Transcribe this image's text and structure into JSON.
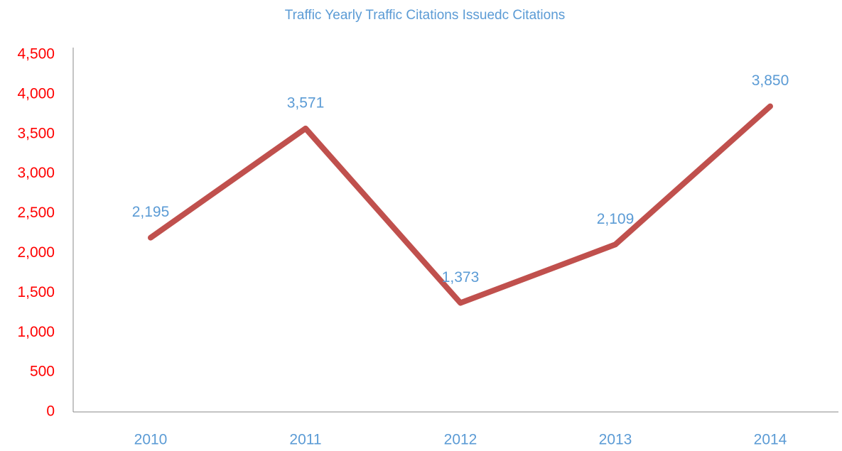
{
  "chart_data": {
    "type": "line",
    "title": "Traffic Yearly Traffic Citations Issuedc Citations",
    "categories": [
      "2010",
      "2011",
      "2012",
      "2013",
      "2014"
    ],
    "values": [
      2195,
      3571,
      1373,
      2109,
      3850
    ],
    "value_labels": [
      "2,195",
      "3,571",
      "1,373",
      "2,109",
      "3,850"
    ],
    "color": "#c0504d",
    "ylim": [
      0,
      4500
    ],
    "yticks": [
      0,
      500,
      {
        "value": 1000,
        "label": "1,000"
      },
      {
        "value": 1500,
        "label": "1,500"
      },
      {
        "value": 2000,
        "label": "2,000"
      },
      {
        "value": 2500,
        "label": "2,500"
      },
      {
        "value": 3000,
        "label": "3,000"
      },
      {
        "value": 3500,
        "label": "3,500"
      },
      {
        "value": 4000,
        "label": "4,000"
      },
      {
        "value": 4500,
        "label": "4,500"
      }
    ],
    "grid": false
  }
}
